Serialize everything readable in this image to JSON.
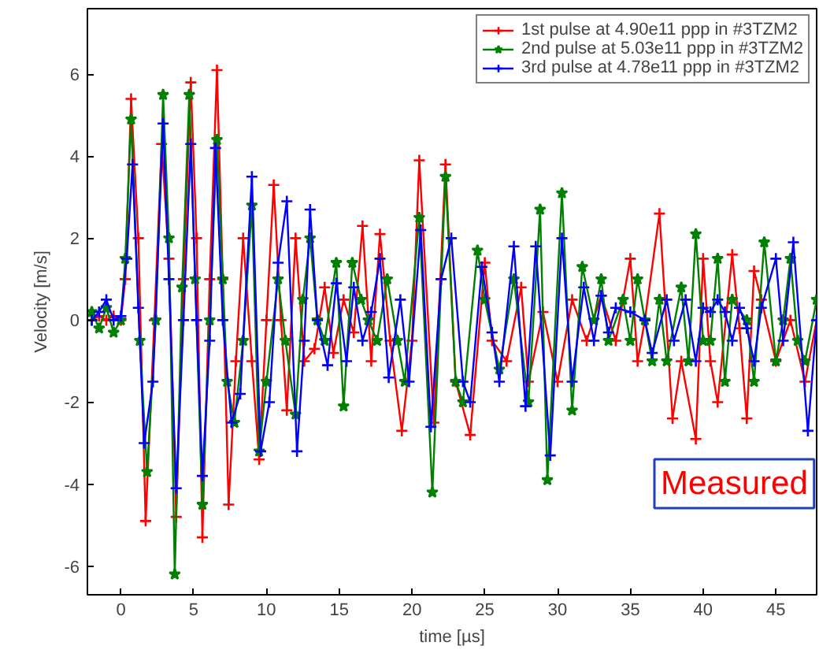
{
  "chart_data": {
    "type": "line",
    "xlabel": "time [µs]",
    "ylabel": "Velocity [m/s]",
    "xlim": [
      -2.3,
      47.8
    ],
    "ylim": [
      -6.7,
      7.6
    ],
    "xticks": [
      0,
      5,
      10,
      15,
      20,
      25,
      30,
      35,
      40,
      45
    ],
    "yticks": [
      -6,
      -4,
      -2,
      0,
      2,
      4,
      6
    ],
    "grid": false,
    "legend": "top right",
    "line_style": "solid",
    "annotations": [
      "Measured"
    ],
    "series": [
      {
        "name": "1st pulse at 4.90e11 ppp in #3TZM2",
        "color": "#ff0000",
        "marker": "cross",
        "x": [
          -2,
          -1.5,
          -1,
          -0.5,
          0,
          0.3,
          0.7,
          1.2,
          1.7,
          2.3,
          2.8,
          3.3,
          3.8,
          4.3,
          4.8,
          5.2,
          5.6,
          6.1,
          6.6,
          7,
          7.4,
          7.9,
          8.4,
          9,
          9.5,
          10,
          10.5,
          11,
          11.4,
          12,
          12.6,
          13.3,
          14,
          14.6,
          15.3,
          16,
          16.6,
          17.2,
          17.8,
          18.5,
          19.3,
          20,
          20.5,
          21.5,
          22.3,
          23,
          24,
          25,
          25.5,
          26.5,
          27.5,
          28,
          29,
          30,
          31,
          32,
          33,
          34,
          35,
          35.5,
          36,
          37,
          37.9,
          38.5,
          39.5,
          40,
          40.5,
          41,
          42,
          42.5,
          43,
          43.5,
          44,
          45,
          46,
          47,
          47.8
        ],
        "values": [
          0,
          0.1,
          0,
          0.1,
          0,
          1,
          5.4,
          2,
          -4.9,
          0,
          4.3,
          1.5,
          -4.8,
          1,
          5.8,
          2,
          -5.3,
          1,
          6.1,
          1,
          -4.5,
          -1,
          2,
          -1,
          -3.4,
          0,
          3.3,
          0,
          -2.2,
          2,
          -1,
          -0.7,
          0.8,
          -0.8,
          0.5,
          -0.3,
          2.3,
          -1,
          2.1,
          -0.5,
          -2.7,
          -0.5,
          3.9,
          -2.5,
          3.8,
          -1.5,
          -2.8,
          1.4,
          -0.5,
          -1,
          0.8,
          -1.5,
          0.2,
          -1.5,
          0.5,
          -0.5,
          0.6,
          -0.5,
          1.5,
          -1,
          0,
          2.6,
          -2.4,
          -1,
          -2.9,
          1.5,
          -1,
          -2,
          1.6,
          -0.2,
          -2.4,
          1.2,
          0.5,
          -1,
          0,
          -1.5,
          0
        ]
      },
      {
        "name": "2nd pulse at 5.03e11 ppp in #3TZM2",
        "color": "#008000",
        "marker": "star",
        "x": [
          -2,
          -1.5,
          -1,
          -0.5,
          0,
          0.3,
          0.7,
          1.3,
          1.8,
          2.4,
          2.9,
          3.3,
          3.7,
          4.2,
          4.7,
          5.1,
          5.6,
          6.1,
          6.6,
          7,
          7.3,
          7.8,
          8.4,
          9,
          9.5,
          10,
          10.8,
          11.3,
          12,
          12.5,
          13,
          13.5,
          14,
          14.8,
          15.3,
          15.9,
          16.5,
          17,
          17.6,
          18.3,
          19,
          19.5,
          20.5,
          21.4,
          22.3,
          23,
          23.5,
          24.5,
          25,
          26,
          27,
          28,
          28.8,
          29.3,
          30.3,
          31,
          31.7,
          32.5,
          33,
          33.5,
          34.5,
          35,
          35.5,
          36,
          36.5,
          37,
          37.5,
          38.5,
          39,
          39.5,
          40,
          40.5,
          41,
          41.5,
          42,
          43,
          43.5,
          44.2,
          45,
          45.5,
          46,
          46.5,
          47,
          47.8
        ],
        "values": [
          0.2,
          -0.2,
          0.3,
          -0.3,
          0,
          1.5,
          4.9,
          -0.5,
          -3.7,
          0,
          5.5,
          2,
          -6.2,
          0.8,
          5.5,
          1,
          -4.5,
          0,
          4.4,
          1,
          -1.5,
          -2.5,
          -0.5,
          2.8,
          -3.2,
          -1.5,
          1,
          -0.5,
          -2.3,
          0.5,
          2,
          0,
          -0.5,
          1.4,
          -2.1,
          1.4,
          0.5,
          0,
          -0.5,
          1,
          -0.5,
          -1.5,
          2.5,
          -4.2,
          3.5,
          -1.5,
          -2,
          1.7,
          0.5,
          -1.2,
          1,
          -2,
          2.7,
          -3.9,
          3.1,
          -2.2,
          1.3,
          0,
          1,
          -0.5,
          0.5,
          -0.5,
          1,
          0,
          -1,
          0.5,
          -1,
          0.8,
          -1,
          2.1,
          -0.5,
          -0.5,
          1.5,
          -1.5,
          0.5,
          0,
          -1.5,
          1.9,
          -1,
          0,
          1.5,
          -0.5,
          -1,
          0.5
        ]
      },
      {
        "name": "3rd pulse at 4.78e11 ppp in #3TZM2",
        "color": "#0000ff",
        "marker": "cross",
        "x": [
          -2,
          -1.5,
          -1,
          -0.5,
          0,
          0.4,
          0.8,
          1.2,
          1.6,
          2.2,
          2.9,
          3.3,
          3.8,
          4.3,
          4.8,
          5.2,
          5.6,
          6.1,
          6.5,
          7,
          7.6,
          8.2,
          9,
          9.6,
          10.2,
          10.8,
          11.4,
          12.1,
          12.6,
          13,
          13.5,
          14.2,
          14.8,
          15.5,
          16,
          16.6,
          17.2,
          17.8,
          18.4,
          19.2,
          19.8,
          20.6,
          21.3,
          22,
          22.7,
          23.5,
          24,
          24.8,
          25.5,
          26,
          27,
          27.8,
          28.5,
          29.5,
          30.3,
          31,
          31.8,
          32.5,
          33,
          33.5,
          34,
          35,
          36,
          36.5,
          37.5,
          38,
          38.8,
          39.5,
          40,
          40.5,
          41,
          41.5,
          42,
          42.5,
          43,
          43.5,
          44,
          45,
          45.5,
          46.2,
          47.2,
          47.8
        ],
        "values": [
          0,
          0.2,
          0.5,
          0,
          0.1,
          1.5,
          3.8,
          0.3,
          -3,
          -1.5,
          4.8,
          1,
          -4.1,
          0,
          4.3,
          0,
          -3.8,
          -0.5,
          4.2,
          0,
          -2.5,
          -1.8,
          3.5,
          -3.2,
          -2,
          1.4,
          2.9,
          -3.2,
          -0.5,
          2.7,
          0,
          -1.1,
          0.9,
          -1,
          0.8,
          -0.5,
          0.2,
          1.5,
          -1.4,
          0.5,
          -1.5,
          2.2,
          -2.6,
          1,
          2,
          -1.5,
          -2,
          1.3,
          -0.3,
          -1.5,
          1.8,
          -2.1,
          1.8,
          -3.3,
          2,
          -1.5,
          0.8,
          -0.5,
          0.6,
          -0.3,
          0.3,
          0.2,
          0,
          -0.8,
          0.5,
          -0.5,
          0.5,
          -1,
          0.3,
          0.2,
          0.5,
          0.2,
          -0.5,
          0.3,
          -0.2,
          -1,
          0.3,
          1.5,
          -0.5,
          1.9,
          -2.7,
          0
        ]
      }
    ]
  }
}
